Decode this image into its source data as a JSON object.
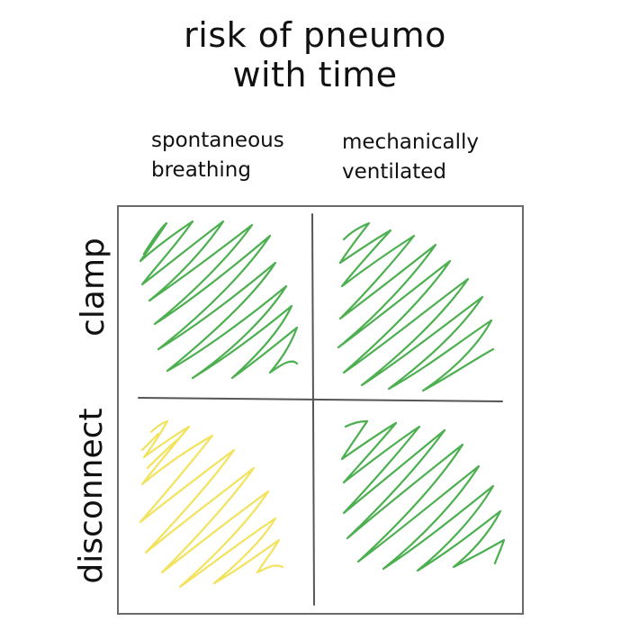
{
  "title": {
    "line1": "risk of pneumo",
    "line2": "with time"
  },
  "columns": [
    {
      "line1": "spontaneous",
      "line2": "breathing"
    },
    {
      "line1": "mechanically",
      "line2": "ventilated"
    }
  ],
  "rows": [
    {
      "label": "clamp"
    },
    {
      "label": "disconnect"
    }
  ],
  "cells": [
    {
      "row": "clamp",
      "column": "spontaneous breathing",
      "color": "#4caf50"
    },
    {
      "row": "clamp",
      "column": "mechanically ventilated",
      "color": "#4caf50"
    },
    {
      "row": "disconnect",
      "column": "spontaneous breathing",
      "color": "#f2e25c"
    },
    {
      "row": "disconnect",
      "column": "mechanically ventilated",
      "color": "#4caf50"
    }
  ],
  "colors": {
    "green": "#4caf50",
    "yellow": "#f2e25c",
    "divider": "#555555"
  }
}
